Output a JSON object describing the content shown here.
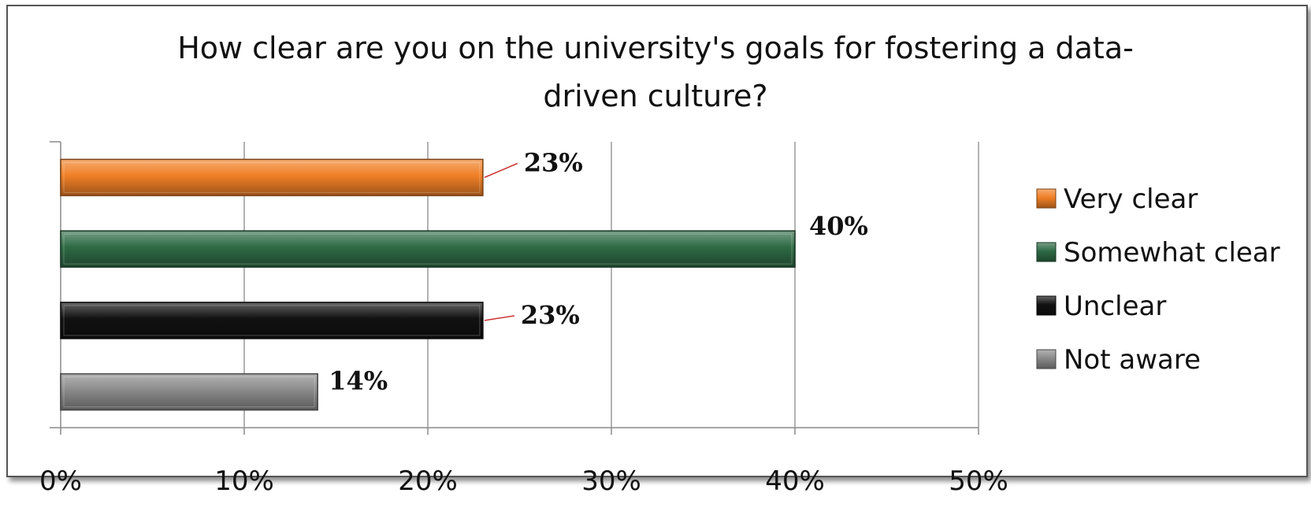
{
  "chart_data": {
    "type": "bar",
    "orientation": "horizontal",
    "title_lines": [
      "How clear are you on the university's goals for fostering a data-",
      "driven culture?"
    ],
    "categories": [
      "Very clear",
      "Somewhat clear",
      "Unclear",
      "Not aware"
    ],
    "values": [
      23,
      40,
      23,
      14
    ],
    "data_labels": [
      "23%",
      "40%",
      "23%",
      "14%"
    ],
    "colors": [
      "#f07f26",
      "#2e6a45",
      "#111111",
      "#8a8a8a"
    ],
    "xlim": [
      0,
      50
    ],
    "xticks": [
      0,
      10,
      20,
      30,
      40,
      50
    ],
    "xtick_labels": [
      "0%",
      "10%",
      "20%",
      "30%",
      "40%",
      "50%"
    ],
    "grid": true,
    "legend_position": "right"
  }
}
